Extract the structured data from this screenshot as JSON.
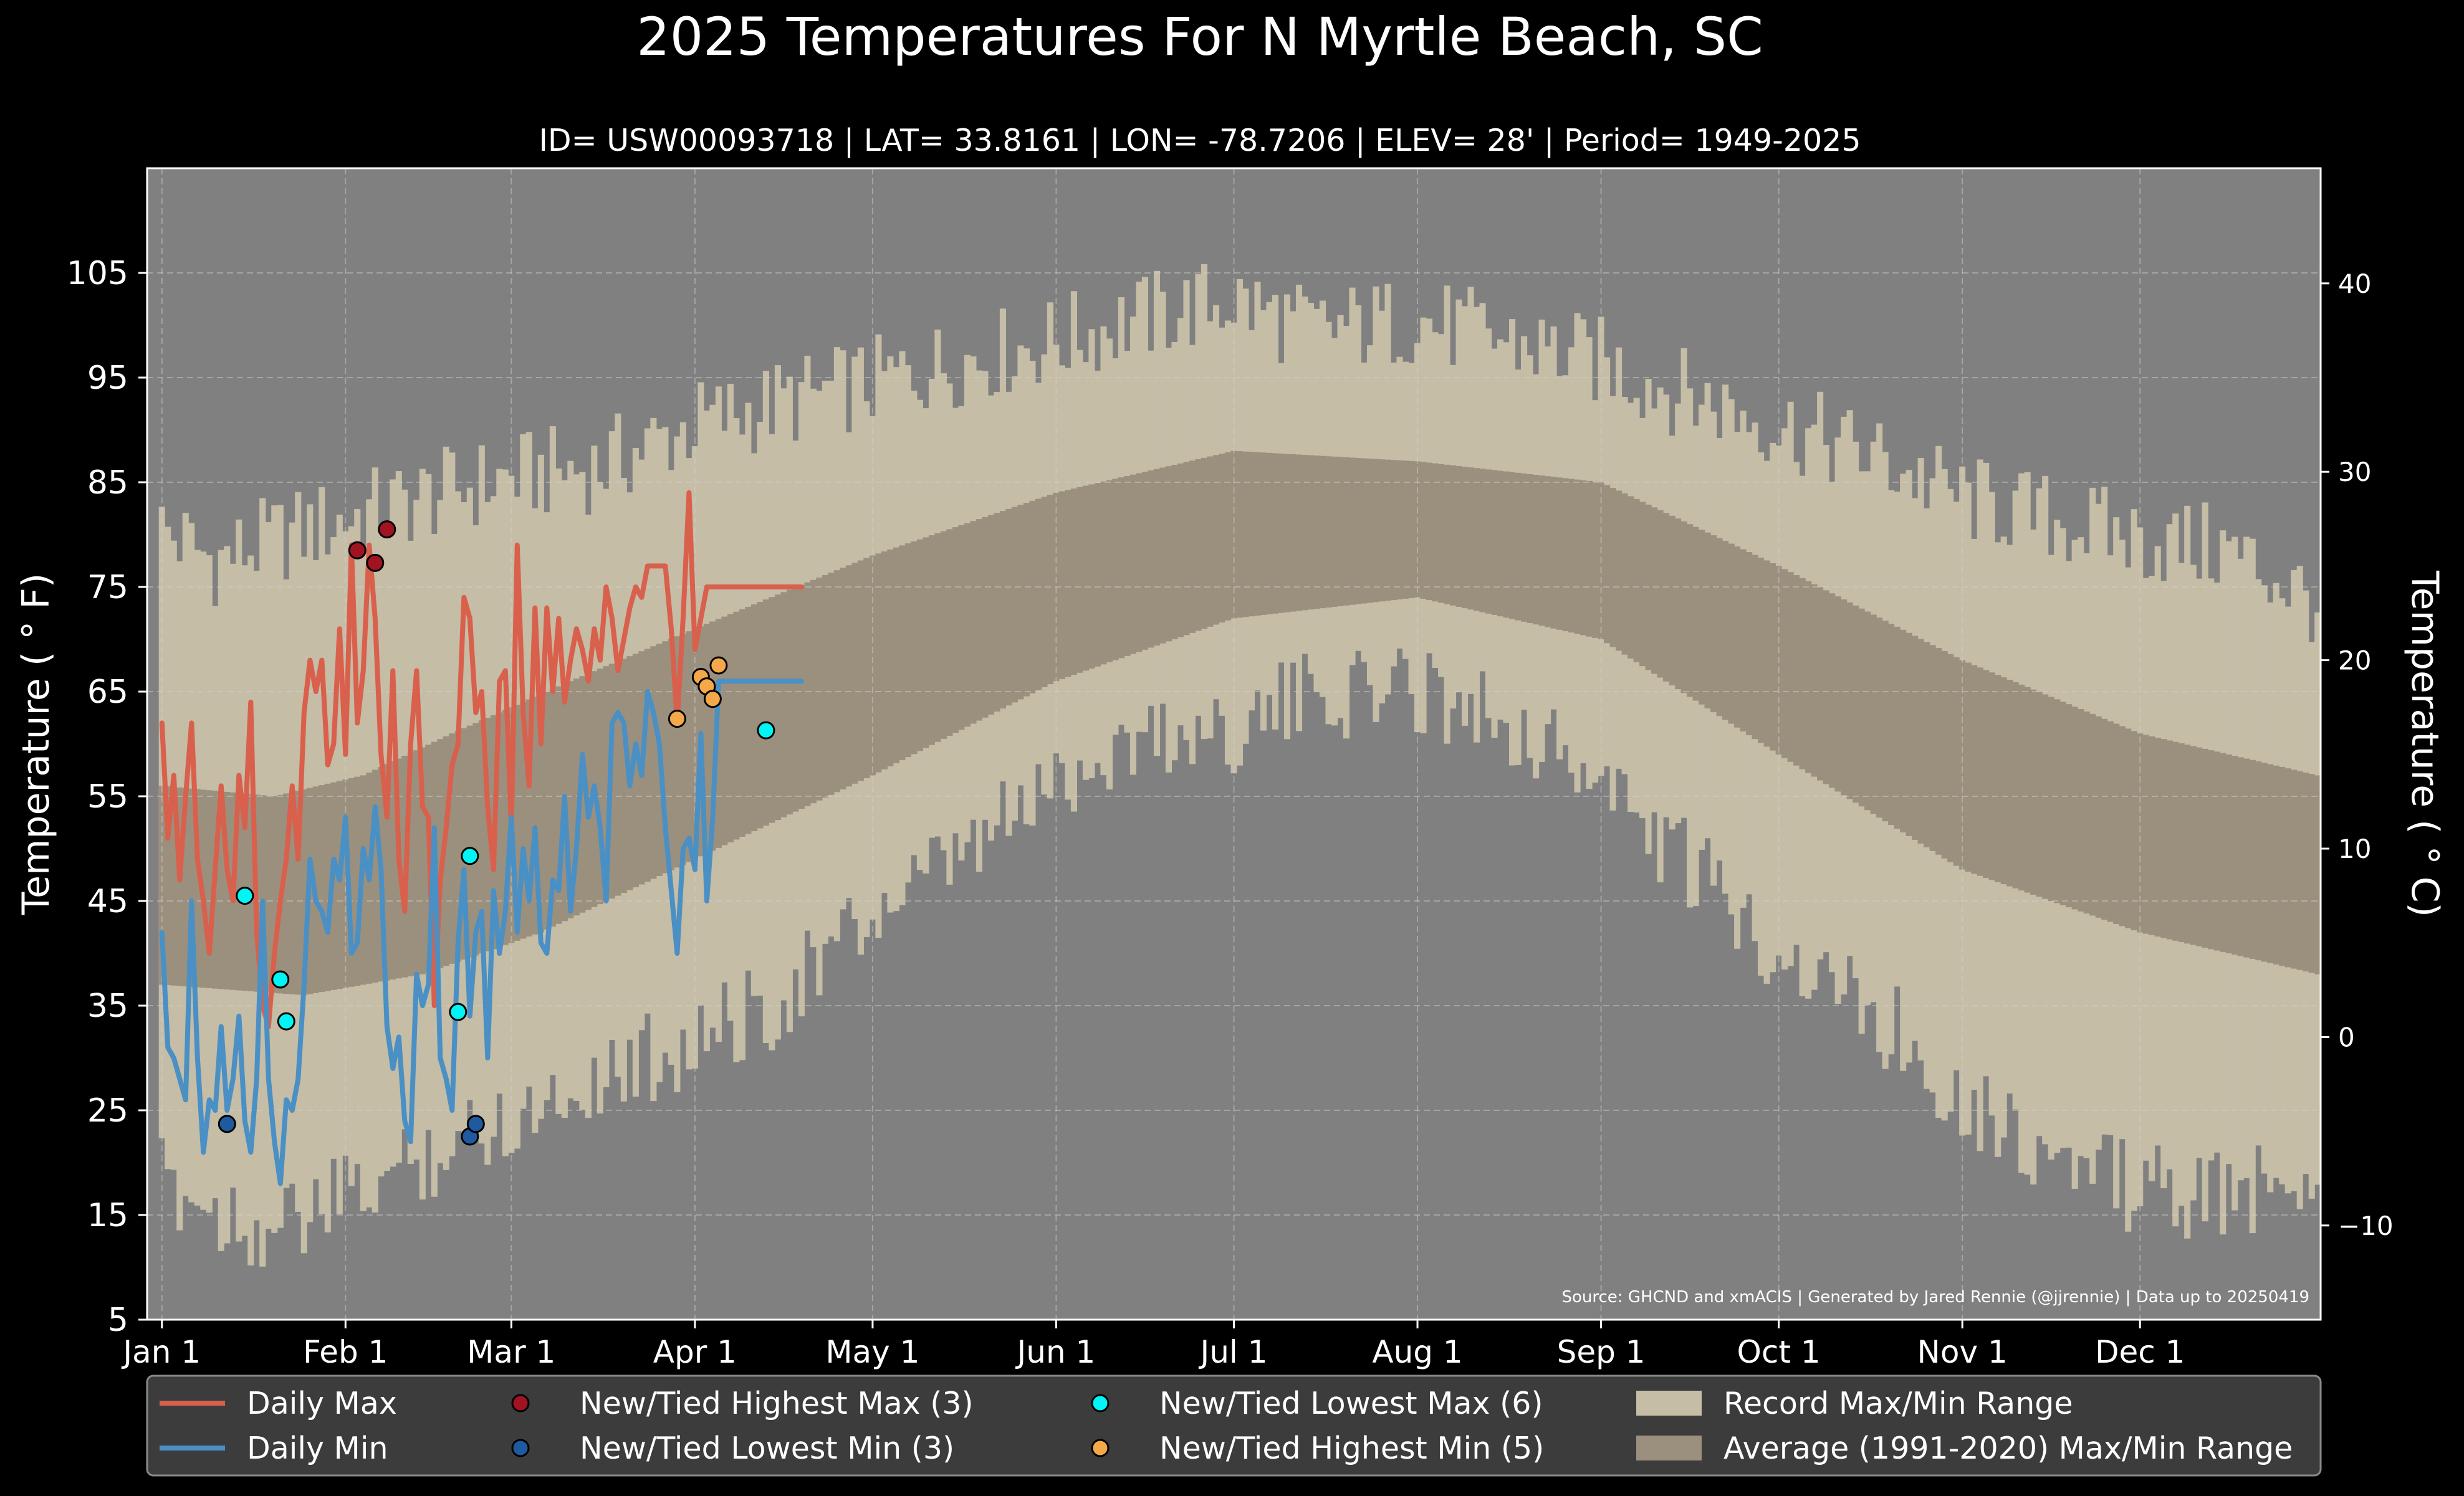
{
  "chart_data": {
    "type": "line",
    "title": "2025 Temperatures For N Myrtle Beach, SC",
    "subtitle": "ID= USW00093718 | LAT= 33.8161 | LON= -78.7206 | ELEV= 28' | Period= 1949-2025",
    "ylabel_left": "Temperature ( ° F)",
    "ylabel_right": "Temperature ( ° C)",
    "source_note": "Source: GHCND and xmACIS | Generated by Jared Rennie (@jjrennie) | Data up to 20250419",
    "x_unit": "day of year",
    "xlim": [
      -1.5,
      365.5
    ],
    "ylim": [
      5,
      115
    ],
    "yticks_f": [
      5,
      15,
      25,
      35,
      45,
      55,
      65,
      75,
      85,
      95,
      105
    ],
    "yticks_c": [
      -10,
      0,
      10,
      20,
      30,
      40
    ],
    "x_ticks": [
      {
        "day": 1,
        "label": "Jan 1"
      },
      {
        "day": 32,
        "label": "Feb 1"
      },
      {
        "day": 60,
        "label": "Mar 1"
      },
      {
        "day": 91,
        "label": "Apr 1"
      },
      {
        "day": 121,
        "label": "May 1"
      },
      {
        "day": 152,
        "label": "Jun 1"
      },
      {
        "day": 182,
        "label": "Jul 1"
      },
      {
        "day": 213,
        "label": "Aug 1"
      },
      {
        "day": 244,
        "label": "Sep 1"
      },
      {
        "day": 274,
        "label": "Oct 1"
      },
      {
        "day": 305,
        "label": "Nov 1"
      },
      {
        "day": 335,
        "label": "Dec 1"
      }
    ],
    "grid": true,
    "legend_position": "bottom",
    "colors": {
      "background": "#808080",
      "record_band": "#c5bda6",
      "average_band": "#9b907e",
      "daily_max": "#d9604c",
      "daily_min": "#4a90c4",
      "new_highest_max": "#a01422",
      "new_lowest_min": "#1f5aa0",
      "new_lowest_max": "#00f5f5",
      "new_highest_min": "#f5a84a"
    },
    "record_max_keypoints": [
      [
        1,
        79
      ],
      [
        10,
        76
      ],
      [
        20,
        78
      ],
      [
        32,
        80
      ],
      [
        45,
        82
      ],
      [
        60,
        84
      ],
      [
        75,
        85
      ],
      [
        91,
        89
      ],
      [
        105,
        91
      ],
      [
        121,
        93
      ],
      [
        135,
        95
      ],
      [
        152,
        97
      ],
      [
        165,
        99
      ],
      [
        182,
        101
      ],
      [
        195,
        98
      ],
      [
        213,
        99
      ],
      [
        228,
        97
      ],
      [
        244,
        95
      ],
      [
        258,
        92
      ],
      [
        274,
        89
      ],
      [
        290,
        86
      ],
      [
        305,
        82
      ],
      [
        320,
        80
      ],
      [
        335,
        78
      ],
      [
        350,
        77
      ],
      [
        365,
        72
      ]
    ],
    "record_min_keypoints": [
      [
        1,
        20
      ],
      [
        10,
        17
      ],
      [
        20,
        15
      ],
      [
        32,
        18
      ],
      [
        45,
        22
      ],
      [
        60,
        26
      ],
      [
        75,
        30
      ],
      [
        91,
        33
      ],
      [
        105,
        37
      ],
      [
        121,
        45
      ],
      [
        135,
        50
      ],
      [
        152,
        58
      ],
      [
        165,
        62
      ],
      [
        182,
        63
      ],
      [
        195,
        66
      ],
      [
        213,
        67
      ],
      [
        228,
        64
      ],
      [
        244,
        58
      ],
      [
        258,
        50
      ],
      [
        274,
        42
      ],
      [
        290,
        36
      ],
      [
        305,
        28
      ],
      [
        320,
        22
      ],
      [
        335,
        19
      ],
      [
        350,
        18
      ],
      [
        365,
        21
      ]
    ],
    "average_max_keypoints": [
      [
        1,
        56
      ],
      [
        20,
        55
      ],
      [
        35,
        57
      ],
      [
        50,
        61
      ],
      [
        70,
        66
      ],
      [
        91,
        71
      ],
      [
        121,
        78
      ],
      [
        152,
        84
      ],
      [
        182,
        88
      ],
      [
        213,
        87
      ],
      [
        244,
        85
      ],
      [
        274,
        77
      ],
      [
        305,
        68
      ],
      [
        335,
        61
      ],
      [
        365,
        57
      ]
    ],
    "average_min_keypoints": [
      [
        1,
        37
      ],
      [
        25,
        36
      ],
      [
        45,
        38
      ],
      [
        65,
        42
      ],
      [
        91,
        49
      ],
      [
        121,
        57
      ],
      [
        152,
        66
      ],
      [
        182,
        72
      ],
      [
        213,
        74
      ],
      [
        244,
        70
      ],
      [
        274,
        59
      ],
      [
        305,
        48
      ],
      [
        335,
        42
      ],
      [
        365,
        38
      ]
    ],
    "series": [
      {
        "name": "Daily Max",
        "x": [
          1,
          2,
          3,
          4,
          5,
          6,
          7,
          8,
          9,
          10,
          11,
          12,
          13,
          14,
          15,
          16,
          17,
          18,
          19,
          20,
          21,
          22,
          23,
          24,
          25,
          26,
          27,
          28,
          29,
          30,
          31,
          32,
          33,
          34,
          35,
          36,
          37,
          38,
          39,
          40,
          41,
          42,
          43,
          44,
          45,
          46,
          47,
          48,
          49,
          50,
          51,
          52,
          53,
          54,
          55,
          56,
          57,
          58,
          59,
          60,
          61,
          62,
          63,
          64,
          65,
          66,
          67,
          68,
          69,
          70,
          71,
          72,
          73,
          74,
          75,
          76,
          77,
          78,
          79,
          80,
          81,
          82,
          83,
          84,
          85,
          86,
          87,
          88,
          89,
          90,
          91,
          92,
          93,
          94,
          95,
          96,
          97,
          98,
          99,
          100,
          101,
          102,
          103,
          104,
          105,
          106,
          107,
          108,
          109
        ],
        "values": [
          62,
          51,
          57,
          47,
          55,
          62,
          49,
          45,
          40,
          48,
          56,
          48,
          45,
          57,
          52,
          64,
          42,
          35,
          33,
          40,
          45,
          49,
          56,
          49,
          63,
          68,
          65,
          68,
          58,
          60,
          71,
          59,
          79,
          62,
          67,
          79,
          72,
          59,
          53,
          67,
          49,
          44,
          60,
          67,
          54,
          53,
          35,
          47,
          52,
          58,
          60,
          74,
          72,
          63,
          65,
          54,
          48,
          66,
          67,
          52,
          79,
          63,
          56,
          73,
          60,
          73,
          65,
          72,
          64,
          68,
          71,
          69,
          66,
          71,
          68,
          75,
          72,
          67,
          70,
          73,
          75,
          74,
          77,
          77,
          77,
          77,
          71,
          62,
          72,
          84,
          69,
          72,
          75,
          75,
          75,
          75,
          75,
          75,
          75,
          75,
          75,
          75,
          75,
          75,
          75,
          75,
          75,
          75,
          75
        ]
      },
      {
        "name": "Daily Min",
        "x": [
          1,
          2,
          3,
          4,
          5,
          6,
          7,
          8,
          9,
          10,
          11,
          12,
          13,
          14,
          15,
          16,
          17,
          18,
          19,
          20,
          21,
          22,
          23,
          24,
          25,
          26,
          27,
          28,
          29,
          30,
          31,
          32,
          33,
          34,
          35,
          36,
          37,
          38,
          39,
          40,
          41,
          42,
          43,
          44,
          45,
          46,
          47,
          48,
          49,
          50,
          51,
          52,
          53,
          54,
          55,
          56,
          57,
          58,
          59,
          60,
          61,
          62,
          63,
          64,
          65,
          66,
          67,
          68,
          69,
          70,
          71,
          72,
          73,
          74,
          75,
          76,
          77,
          78,
          79,
          80,
          81,
          82,
          83,
          84,
          85,
          86,
          87,
          88,
          89,
          90,
          91,
          92,
          93,
          94,
          95,
          96,
          97,
          98,
          99,
          100,
          101,
          102,
          103,
          104,
          105,
          106,
          107,
          108,
          109
        ],
        "values": [
          42,
          31,
          30,
          28,
          26,
          45,
          30,
          21,
          26,
          25,
          33,
          25,
          28,
          34,
          24,
          21,
          28,
          45,
          28,
          22,
          18,
          26,
          25,
          28,
          37,
          49,
          45,
          44,
          42,
          49,
          47,
          53,
          40,
          41,
          50,
          47,
          54,
          48,
          33,
          29,
          32,
          24,
          22,
          38,
          35,
          37,
          52,
          30,
          28,
          25,
          41,
          48,
          34,
          42,
          44,
          30,
          46,
          40,
          44,
          53,
          42,
          50,
          45,
          52,
          41,
          40,
          47,
          46,
          55,
          44,
          50,
          59,
          53,
          56,
          52,
          45,
          62,
          63,
          62,
          56,
          60,
          57,
          65,
          63,
          60,
          52,
          46,
          40,
          50,
          51,
          48,
          61,
          45,
          53,
          66,
          66,
          66,
          66,
          66,
          66,
          66,
          66,
          66,
          66,
          66,
          66,
          66,
          66,
          66
        ]
      }
    ],
    "marker_groups": [
      {
        "name": "New/Tied Highest Max (3)",
        "points": [
          [
            34,
            78.5
          ],
          [
            37,
            77.3
          ],
          [
            39,
            80.5
          ]
        ]
      },
      {
        "name": "New/Tied Lowest Min (3)",
        "points": [
          [
            12,
            23.7
          ],
          [
            53,
            22.5
          ],
          [
            54,
            23.7
          ]
        ]
      },
      {
        "name": "New/Tied Lowest Max (6)",
        "points": [
          [
            15,
            45.5
          ],
          [
            21,
            37.5
          ],
          [
            22,
            33.5
          ],
          [
            51,
            34.4
          ],
          [
            53,
            49.3
          ],
          [
            103,
            61.3
          ]
        ]
      },
      {
        "name": "New/Tied Highest Min (5)",
        "points": [
          [
            88,
            62.4
          ],
          [
            92,
            66.4
          ],
          [
            93,
            65.5
          ],
          [
            94,
            64.3
          ],
          [
            95,
            67.5
          ]
        ]
      }
    ],
    "legend": [
      {
        "label": "Daily Max",
        "kind": "line",
        "color": "#d9604c"
      },
      {
        "label": "Daily Min",
        "kind": "line",
        "color": "#4a90c4"
      },
      {
        "label": "New/Tied Highest Max (3)",
        "kind": "dot",
        "color": "#a01422"
      },
      {
        "label": "New/Tied Lowest Min (3)",
        "kind": "dot",
        "color": "#1f5aa0"
      },
      {
        "label": "New/Tied Lowest Max (6)",
        "kind": "dot",
        "color": "#00f5f5"
      },
      {
        "label": "New/Tied Highest Min (5)",
        "kind": "dot",
        "color": "#f5a84a"
      },
      {
        "label": "Record Max/Min Range",
        "kind": "patch",
        "color": "#c5bda6"
      },
      {
        "label": "Average (1991-2020) Max/Min Range",
        "kind": "patch",
        "color": "#9b907e"
      }
    ]
  }
}
